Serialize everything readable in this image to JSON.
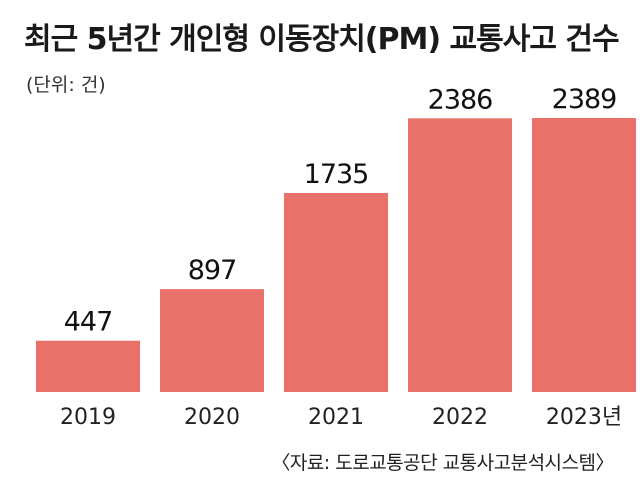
{
  "chart_data": {
    "type": "bar",
    "title": "최근 5년간 개인형 이동장치(PM) 교통사고 건수",
    "unit_note": "(단위: 건)",
    "categories": [
      "2019",
      "2020",
      "2021",
      "2022",
      "2023년"
    ],
    "values": [
      447,
      897,
      1735,
      2386,
      2389
    ],
    "ylim": [
      0,
      2389
    ],
    "bar_color": "#e8716a",
    "grid": false,
    "legend": "none",
    "source": "〈자료: 도로교통공단 교통사고분석시스템〉"
  }
}
